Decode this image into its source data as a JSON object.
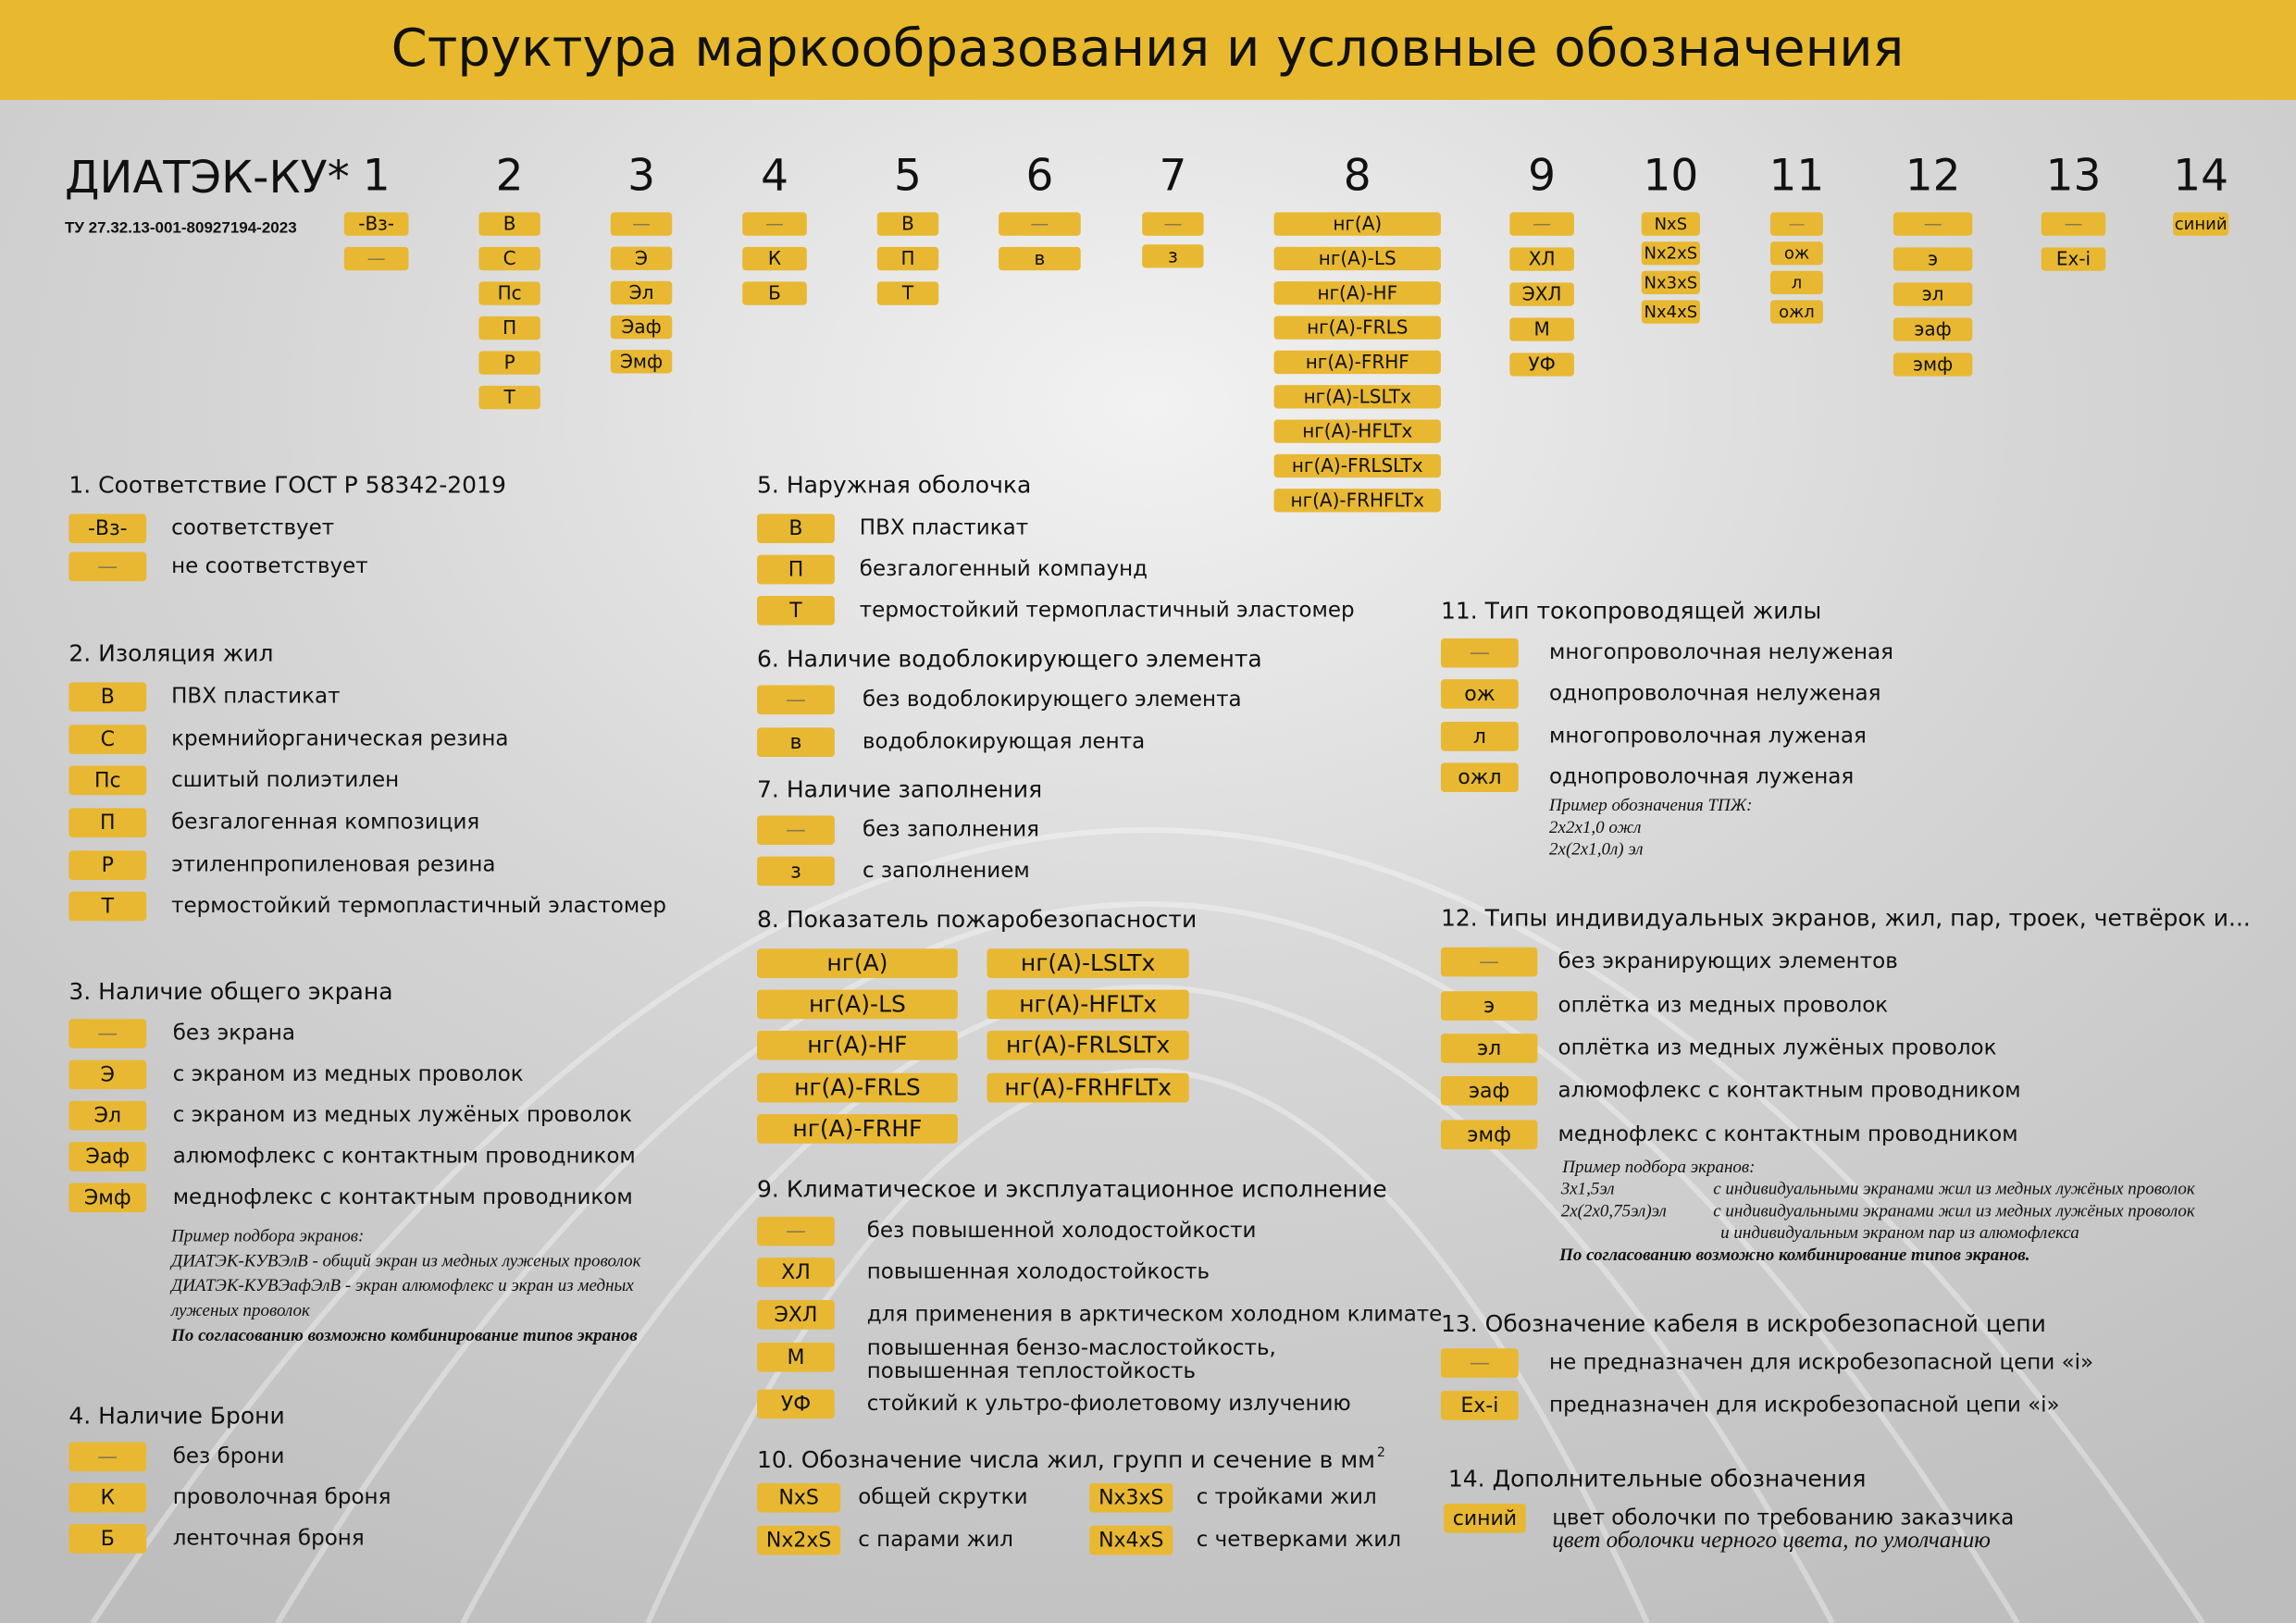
{
  "header": {
    "title": "Структура маркообразования и условные обозначения"
  },
  "marking": {
    "brand": "ДИАТЭК-КУ*",
    "spec": "ТУ 27.32.13-001-80927194-2023",
    "positions": [
      {
        "number": 1,
        "codes": [
          "-Вз-",
          "—"
        ]
      },
      {
        "number": 2,
        "codes": [
          "В",
          "С",
          "Пс",
          "П",
          "Р",
          "Т"
        ]
      },
      {
        "number": 3,
        "codes": [
          "—",
          "Э",
          "Эл",
          "Эаф",
          "Эмф"
        ]
      },
      {
        "number": 4,
        "codes": [
          "—",
          "К",
          "Б"
        ]
      },
      {
        "number": 5,
        "codes": [
          "В",
          "П",
          "Т"
        ]
      },
      {
        "number": 6,
        "codes": [
          "—",
          "в"
        ]
      },
      {
        "number": 7,
        "codes": [
          "—",
          "з"
        ]
      },
      {
        "number": 8,
        "codes": [
          "нг(А)",
          "нг(А)-LS",
          "нг(А)-HF",
          "нг(А)-FRLS",
          "нг(А)-FRHF",
          "нг(А)-LSLTx",
          "нг(А)-HFLTx",
          "нг(А)-FRLSLTx",
          "нг(А)-FRHFLTx"
        ]
      },
      {
        "number": 9,
        "codes": [
          "—",
          "ХЛ",
          "ЭХЛ",
          "М",
          "УФ"
        ]
      },
      {
        "number": 10,
        "codes": [
          "NxS",
          "Nx2xS",
          "Nx3xS",
          "Nx4xS"
        ]
      },
      {
        "number": 11,
        "codes": [
          "—",
          "ож",
          "л",
          "ожл"
        ]
      },
      {
        "number": 12,
        "codes": [
          "—",
          "э",
          "эл",
          "эаф",
          "эмф"
        ]
      },
      {
        "number": 13,
        "codes": [
          "—",
          "Ex-i"
        ]
      },
      {
        "number": 14,
        "codes": [
          "синий"
        ]
      }
    ]
  },
  "sections": [
    {
      "title": "1. Соответствие ГОСТ Р 58342-2019",
      "items": [
        {
          "code": "-Вз-",
          "text": "соответствует"
        },
        {
          "code": "—",
          "text": "не соответствует"
        }
      ]
    },
    {
      "title": "2. Изоляция жил",
      "items": [
        {
          "code": "В",
          "text": "ПВХ пластикат"
        },
        {
          "code": "С",
          "text": "кремнийорганическая резина"
        },
        {
          "code": "Пс",
          "text": "сшитый полиэтилен"
        },
        {
          "code": "П",
          "text": "безгалогенная композиция"
        },
        {
          "code": "Р",
          "text": "этиленпропиленовая резина"
        },
        {
          "code": "Т",
          "text": "термостойкий термопластичный эластомер"
        }
      ]
    },
    {
      "title": "3. Наличие общего экрана",
      "items": [
        {
          "code": "—",
          "text": "без экрана"
        },
        {
          "code": "Э",
          "text": "с экраном  из медных проволок"
        },
        {
          "code": "Эл",
          "text": "с экраном  из медных лужёных проволок"
        },
        {
          "code": "Эаф",
          "text": "алюмофлекс с контактным проводником"
        },
        {
          "code": "Эмф",
          "text": "меднофлекс с контактным проводником"
        }
      ],
      "note": [
        {
          "text": "Пример подбора экранов:"
        },
        {
          "text": "ДИАТЭК-КУВЭлВ - общий экран из медных луженых проволок"
        },
        {
          "text": "ДИАТЭК-КУВЭафЭлВ - экран алюмофлекс и экран из медных"
        },
        {
          "text": "луженых проволок"
        },
        {
          "text": "По согласованию возможно комбинирование типов экранов",
          "bold": true
        }
      ]
    },
    {
      "title": "4. Наличие Брони",
      "items": [
        {
          "code": "—",
          "text": "без  брони"
        },
        {
          "code": "К",
          "text": "проволочная броня"
        },
        {
          "code": "Б",
          "text": "ленточная броня"
        }
      ]
    },
    {
      "title": "5. Наружная оболочка",
      "items": [
        {
          "code": "В",
          "text": "ПВХ пластикат"
        },
        {
          "code": "П",
          "text": "безгалогенный компаунд"
        },
        {
          "code": "Т",
          "text": "термостойкий термопластичный эластомер"
        }
      ]
    },
    {
      "title": "6. Наличие водоблокирующего  элемента",
      "items": [
        {
          "code": "—",
          "text": "без водоблокирующего элемента"
        },
        {
          "code": "в",
          "text": "водоблокирующая лента"
        }
      ]
    },
    {
      "title": "7. Наличие заполнения",
      "items": [
        {
          "code": "—",
          "text": "без заполнения"
        },
        {
          "code": "з",
          "text": "с заполнением"
        }
      ]
    },
    {
      "title": "8. Показатель пожаробезопасности",
      "items": [
        {
          "code": "нг(А)"
        },
        {
          "code": "нг(А)-LS"
        },
        {
          "code": "нг(А)-HF"
        },
        {
          "code": "нг(А)-FRLS"
        },
        {
          "code": "нг(А)-FRHF"
        },
        {
          "code": "нг(А)-LSLTx"
        },
        {
          "code": "нг(А)-HFLTx"
        },
        {
          "code": "нг(А)-FRLSLTx"
        },
        {
          "code": "нг(А)-FRHFLTx"
        }
      ]
    },
    {
      "title": "9. Климатическое и  эксплуатационное исполнение",
      "items": [
        {
          "code": "—",
          "text": "без повышенной холодостойкости"
        },
        {
          "code": "ХЛ",
          "text": "повышенная холодостойкость"
        },
        {
          "code": "ЭХЛ",
          "text": "для применения в арктическом холодном климате"
        },
        {
          "code": "М",
          "lines": [
            "повышенная бензо-маслостойкость,",
            "повышенная теплостойкость"
          ]
        },
        {
          "code": "УФ",
          "text": "стойкий к ультро-фиолетовому излучению"
        }
      ]
    },
    {
      "title": "10. Обозначение числа жил, групп и сечение в мм",
      "title_sup": "2",
      "items": [
        {
          "code": "NxS",
          "text": "общей скрутки"
        },
        {
          "code": "Nx2xS",
          "text": "с парами жил"
        },
        {
          "code": "Nx3xS",
          "text": "с тройками жил"
        },
        {
          "code": "Nx4xS",
          "text": "с четверками жил"
        }
      ]
    },
    {
      "title": "11.  Тип токопроводящей жилы",
      "items": [
        {
          "code": "—",
          "text": "многопроволочная нелуженая"
        },
        {
          "code": "ож",
          "text": "однопроволочная нелуженая"
        },
        {
          "code": "л",
          "text": "многопроволочная луженая"
        },
        {
          "code": "ожл",
          "text": "однопроволочная луженая"
        }
      ],
      "note": [
        {
          "text": "Пример обозначения ТПЖ:"
        },
        {
          "text": "2х2х1,0 ожл"
        },
        {
          "text": "2х(2х1,0л) эл"
        }
      ]
    },
    {
      "title": "12. Типы индивидуальных экранов, жил, пар, троек, четвёрок и...",
      "items": [
        {
          "code": "—",
          "text": "без экранирующих элементов"
        },
        {
          "code": "э",
          "text": "оплётка из медных проволок"
        },
        {
          "code": "эл",
          "text": "оплётка из медных лужёных проволок"
        },
        {
          "code": "эаф",
          "text": "алюмофлекс с контактным проводником"
        },
        {
          "code": "эмф",
          "text": "меднофлекс с контактным проводником"
        }
      ],
      "note": [
        {
          "text": "Пример подбора экранов:"
        },
        {
          "left": "3х1,5эл",
          "text": "с индивидуальными экранами жил из медных лужёных проволок"
        },
        {
          "left": "2х(2х0,75эл)эл",
          "text": "с индивидуальными экранами жил из медных лужёных проволок"
        },
        {
          "text": "и индивидуальным экраном пар из алюмофлекса"
        },
        {
          "text": "По согласованию возможно комбинирование типов экранов.",
          "bold": true
        }
      ]
    },
    {
      "title": "13. Обозначение кабеля в искробезопасной цепи",
      "items": [
        {
          "code": "—",
          "text": "не предназначен для искробезопасной цепи «i»"
        },
        {
          "code": "Ex-i",
          "text": "предназначен для искробезопасной цепи «i»"
        }
      ]
    },
    {
      "title": "14. Дополнительные обозначения",
      "items": [
        {
          "code": "синий",
          "text": "цвет оболочки по требованию заказчика"
        }
      ],
      "note": [
        {
          "text": "цвет оболочки черного цвета, по умолчанию"
        }
      ]
    }
  ]
}
